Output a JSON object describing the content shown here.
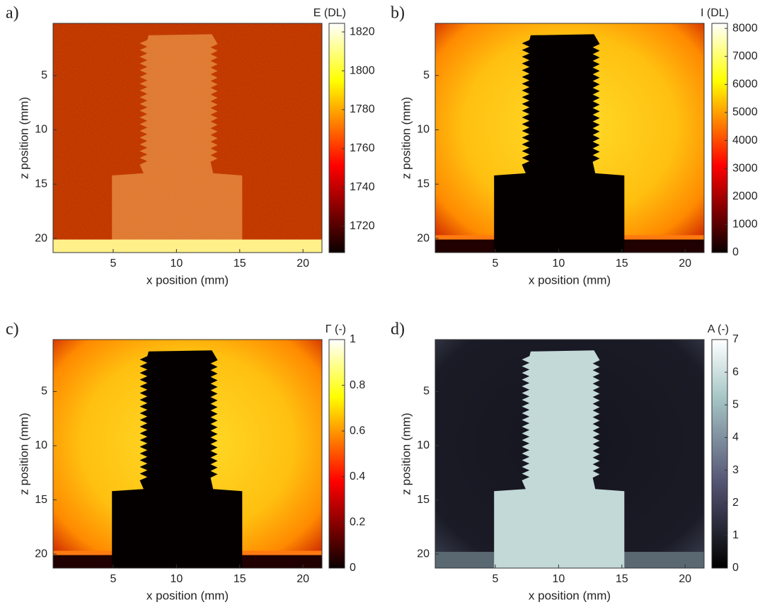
{
  "chart_data": [
    {
      "type": "heatmap",
      "panel_label": "a)",
      "xlabel": "x position (mm)",
      "ylabel": "z position (mm)",
      "xlim": [
        0.25,
        21.5
      ],
      "xticks": [
        5,
        10,
        15,
        20
      ],
      "ylim": [
        21.3,
        0.2
      ],
      "yticks": [
        5,
        10,
        15,
        20
      ],
      "colorbar_label": "E (DL)",
      "colormap": "hot",
      "clim": [
        1706.5,
        1824.4
      ],
      "cticks": [
        1720,
        1740,
        1760,
        1780,
        1800,
        1820
      ]
    },
    {
      "type": "heatmap",
      "panel_label": "b)",
      "xlabel": "x position (mm)",
      "ylabel": "z position (mm)",
      "xlim": [
        0.25,
        21.5
      ],
      "xticks": [
        5,
        10,
        15,
        20
      ],
      "ylim": [
        21.3,
        0.2
      ],
      "yticks": [
        5,
        10,
        15,
        20
      ],
      "colorbar_label": "I (DL)",
      "colormap": "hot",
      "clim": [
        0,
        8180
      ],
      "cticks": [
        0,
        1000,
        2000,
        3000,
        4000,
        5000,
        6000,
        7000,
        8000
      ]
    },
    {
      "type": "heatmap",
      "panel_label": "c)",
      "xlabel": "x position (mm)",
      "ylabel": "z position (mm)",
      "xlim": [
        0.25,
        21.5
      ],
      "xticks": [
        5,
        10,
        15,
        20
      ],
      "ylim": [
        21.3,
        0.2
      ],
      "yticks": [
        5,
        10,
        15,
        20
      ],
      "colorbar_label": "Γ (-)",
      "colormap": "hot",
      "clim": [
        0,
        1
      ],
      "cticks": [
        0,
        0.2,
        0.4,
        0.6,
        0.8,
        1
      ]
    },
    {
      "type": "heatmap",
      "panel_label": "d)",
      "xlabel": "x position (mm)",
      "ylabel": "z position (mm)",
      "xlim": [
        0.25,
        21.5
      ],
      "xticks": [
        5,
        10,
        15,
        20
      ],
      "ylim": [
        21.3,
        0.2
      ],
      "yticks": [
        5,
        10,
        15,
        20
      ],
      "colorbar_label": "A (-)",
      "colormap": "bone",
      "clim": [
        0,
        7
      ],
      "cticks": [
        0,
        1,
        2,
        3,
        4,
        5,
        6,
        7
      ]
    }
  ]
}
